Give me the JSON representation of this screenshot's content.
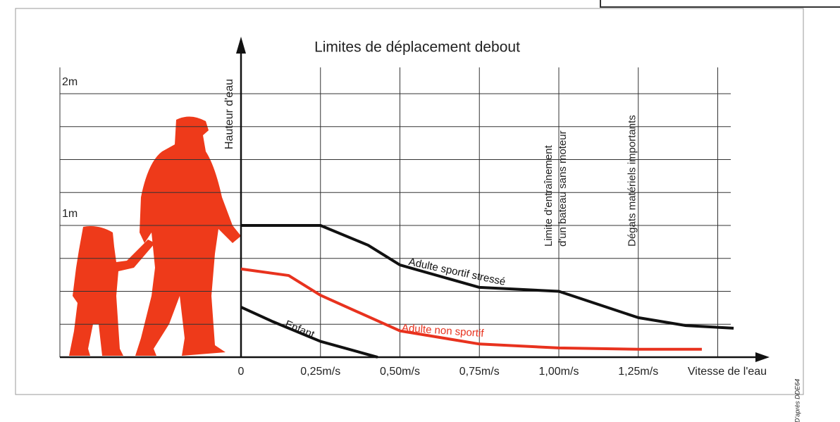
{
  "chart_data": {
    "type": "line",
    "title": "Limites de déplacement debout",
    "y_label": "Hauteur d'eau",
    "x_label": "Vitesse de l'eau",
    "source": "D'après DDE64",
    "annotations": [
      {
        "x": 1.0,
        "text": "Limite d'entraînement d'un bateau sans moteur"
      },
      {
        "x": 1.25,
        "text": "Dégats matériels importants"
      }
    ],
    "xlim": [
      0,
      1.6
    ],
    "ylim": [
      0,
      2.2
    ],
    "xticks": [
      0,
      {
        "value": 0.25,
        "label": "0,25m/s"
      },
      {
        "value": 0.5,
        "label": "0,50m/s"
      },
      {
        "value": 0.75,
        "label": "0,75m/s"
      },
      {
        "value": 1.0,
        "label": "1,00m/s"
      },
      {
        "value": 1.25,
        "label": "1,25m/s"
      }
    ],
    "yticks": [
      {
        "value": 1,
        "label": "1m"
      },
      {
        "value": 2,
        "label": "2m"
      }
    ],
    "xgrid": [
      0.25,
      0.5,
      0.75,
      1.0,
      1.25,
      1.5
    ],
    "ygrid": [
      0.25,
      0.5,
      0.75,
      1.0,
      1.25,
      1.5,
      1.75,
      2.0
    ],
    "grid": true,
    "series": [
      {
        "name": "Adulte sportif stressé",
        "color": "#111111",
        "x": [
          0,
          0.25,
          0.4,
          0.5,
          0.75,
          1.0,
          1.25,
          1.4,
          1.55
        ],
        "values": [
          1.0,
          1.0,
          0.85,
          0.7,
          0.53,
          0.5,
          0.3,
          0.24,
          0.22
        ]
      },
      {
        "name": "Adulte non sportif",
        "color": "#e8321e",
        "x": [
          0,
          0.15,
          0.25,
          0.5,
          0.75,
          1.0,
          1.25,
          1.45
        ],
        "values": [
          0.67,
          0.62,
          0.47,
          0.2,
          0.1,
          0.07,
          0.06,
          0.06
        ]
      },
      {
        "name": "Enfant",
        "color": "#111111",
        "x": [
          0,
          0.1,
          0.25,
          0.4,
          0.43
        ],
        "values": [
          0.38,
          0.27,
          0.12,
          0.02,
          0
        ]
      }
    ]
  }
}
